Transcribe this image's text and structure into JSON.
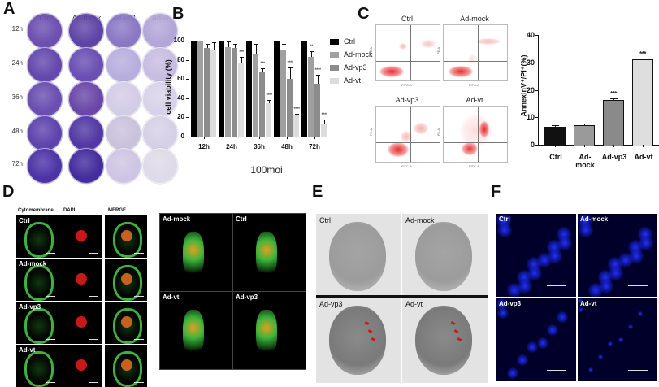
{
  "figure": {
    "panel_letters": [
      "A",
      "B",
      "C",
      "D",
      "E",
      "F"
    ]
  },
  "panelA": {
    "columns": [
      "Ctrl",
      "Ad-mock",
      "Ad-vp3",
      "Ad-vt"
    ],
    "rows": [
      "12h",
      "24h",
      "36h",
      "48h",
      "72h"
    ],
    "plate_colors": [
      [
        "#6c4fb0",
        "#5e44a6",
        "#8a78c4",
        "#b3a6d8"
      ],
      [
        "#6448ad",
        "#6a4eb3",
        "#b8aede",
        "#c7bde2"
      ],
      [
        "#6a4eb1",
        "#6a47a8",
        "#d3cce6",
        "#d8d2e8"
      ],
      [
        "#5d43ac",
        "#5138a4",
        "#c9c2dc",
        "#d6d0e6"
      ],
      [
        "#4c33a6",
        "#432c9c",
        "#cdc5e3",
        "#dedae8"
      ]
    ]
  },
  "chart_data": [
    {
      "type": "bar",
      "panel": "B",
      "title": "",
      "xlabel": "100moi",
      "ylabel": "cell viability (%)",
      "ylim": [
        0,
        100
      ],
      "yticks": [
        0,
        20,
        40,
        60,
        80,
        100
      ],
      "categories": [
        "12h",
        "24h",
        "36h",
        "48h",
        "72h"
      ],
      "series": [
        {
          "name": "Ctrl",
          "color": "#000000",
          "values": [
            100,
            100,
            100,
            100,
            100
          ],
          "errors": [
            0,
            0,
            0,
            0,
            0
          ],
          "sig": [
            "",
            "",
            "",
            "",
            ""
          ]
        },
        {
          "name": "Ad-mock",
          "color": "#a0a0a0",
          "values": [
            100,
            93,
            86,
            91,
            83
          ],
          "errors": [
            0,
            6,
            11,
            6,
            6
          ],
          "sig": [
            "",
            "",
            "",
            "",
            "**"
          ]
        },
        {
          "name": "Ad-vp3",
          "color": "#8c8c8c",
          "values": [
            92,
            92,
            68,
            60,
            55
          ],
          "errors": [
            5,
            5,
            3,
            12,
            9
          ],
          "sig": [
            "",
            "",
            "***",
            "****",
            "****"
          ]
        },
        {
          "name": "Ad-vt",
          "color": "#dcdcdc",
          "values": [
            90,
            77,
            35,
            22,
            13
          ],
          "errors": [
            8,
            6,
            3,
            2,
            5
          ],
          "sig": [
            "",
            "***",
            "****",
            "****",
            "****"
          ]
        }
      ],
      "legend_position": "right"
    },
    {
      "type": "bar",
      "panel": "C",
      "title": "",
      "xlabel": "",
      "ylabel": "AnnexinV⁺/PI⁺(%)",
      "ylim": [
        0,
        40
      ],
      "yticks": [
        0,
        10,
        20,
        30,
        40
      ],
      "categories": [
        "Ctrl",
        "Ad-mock",
        "Ad-vp3",
        "Ad-vt"
      ],
      "values": [
        6.5,
        7.0,
        16.2,
        31.2
      ],
      "errors": [
        0.7,
        0.6,
        0.8,
        0.3
      ],
      "colors": [
        "#111111",
        "#9a9a9a",
        "#8a8a8a",
        "#dedede"
      ],
      "sig": [
        "",
        "",
        "***",
        "***"
      ]
    }
  ],
  "panelC_flow": {
    "plots": [
      {
        "title": "Ctrl"
      },
      {
        "title": "Ad-mock"
      },
      {
        "title": "Ad-vp3"
      },
      {
        "title": "Ad-vt"
      }
    ],
    "xaxis": "FITC-A",
    "yaxis": "PE-A"
  },
  "panelD": {
    "headers": [
      "Cytomembrane",
      "DAPI",
      "MERGE"
    ],
    "rows": [
      "Ctrl",
      "Ad-mock",
      "Ad-vp3",
      "Ad-vt"
    ],
    "views3d": [
      "Ad-mock",
      "Ctrl",
      "Ad-vt",
      "Ad-vp3"
    ]
  },
  "panelE": {
    "labels": [
      "Ctrl",
      "Ad-mock",
      "Ad-vp3",
      "Ad-vt"
    ]
  },
  "panelF": {
    "labels": [
      "Ctrl",
      "Ad-mock",
      "Ad-vp3",
      "Ad-vt"
    ]
  }
}
